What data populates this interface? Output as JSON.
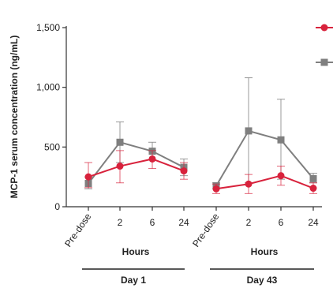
{
  "chart_data": {
    "type": "line",
    "ylabel": "MCP-1 serum concentration (ng/mL)",
    "ylim": [
      0,
      1500
    ],
    "y_ticks": [
      0,
      500,
      1000,
      1500
    ],
    "y_tick_labels": [
      "0",
      "500",
      "1,000",
      "1,500"
    ],
    "categories": [
      "Pre-dose",
      "2",
      "6",
      "24",
      "Pre-dose",
      "2",
      "6",
      "24"
    ],
    "groups": [
      {
        "unit_label": "Hours",
        "day_label": "Day 1"
      },
      {
        "unit_label": "Hours",
        "day_label": "Day 43"
      }
    ],
    "series": [
      {
        "color": "#d8223c",
        "marker": "circle",
        "values": [
          250,
          340,
          400,
          300,
          150,
          190,
          260,
          155
        ],
        "err_low": [
          160,
          200,
          320,
          230,
          110,
          110,
          180,
          110
        ],
        "err_high": [
          370,
          470,
          470,
          370,
          190,
          270,
          340,
          200
        ]
      },
      {
        "color": "#7f7f7f",
        "marker": "square",
        "values": [
          195,
          540,
          465,
          330,
          175,
          635,
          560,
          235
        ],
        "err_low": [
          150,
          370,
          390,
          260,
          150,
          200,
          230,
          200
        ],
        "err_high": [
          250,
          710,
          540,
          400,
          200,
          1080,
          900,
          280
        ]
      }
    ]
  }
}
